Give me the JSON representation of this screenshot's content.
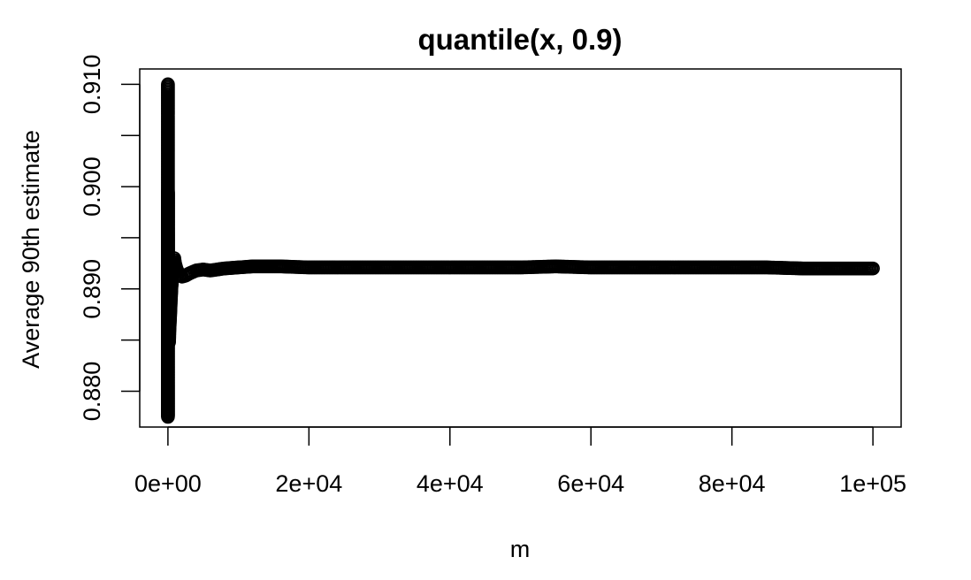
{
  "chart_data": {
    "type": "scatter",
    "title": "quantile(x, 0.9)",
    "xlabel": "m",
    "ylabel": "Average 90th estimate",
    "xlim": [
      -4000,
      104000
    ],
    "ylim": [
      0.8765,
      0.9115
    ],
    "x_ticks": [
      {
        "value": 0,
        "label": "0e+00"
      },
      {
        "value": 20000,
        "label": "2e+04"
      },
      {
        "value": 40000,
        "label": "4e+04"
      },
      {
        "value": 60000,
        "label": "6e+04"
      },
      {
        "value": 80000,
        "label": "8e+04"
      },
      {
        "value": 100000,
        "label": "1e+05"
      }
    ],
    "y_ticks": [
      {
        "value": 0.88,
        "label": "0.880"
      },
      {
        "value": 0.89,
        "label": "0.890"
      },
      {
        "value": 0.9,
        "label": "0.900"
      },
      {
        "value": 0.91,
        "label": "0.910"
      }
    ],
    "marker": "open-circle",
    "grid": false,
    "legend": "none",
    "series": [
      {
        "points": [
          [
            1,
            0.91
          ],
          [
            2,
            0.8775
          ],
          [
            3,
            0.8995
          ],
          [
            4,
            0.8968
          ],
          [
            5,
            0.8965
          ],
          [
            6,
            0.896
          ],
          [
            8,
            0.8955
          ],
          [
            10,
            0.8945
          ],
          [
            12,
            0.894
          ],
          [
            15,
            0.8935
          ],
          [
            20,
            0.8925
          ],
          [
            25,
            0.892
          ],
          [
            30,
            0.891
          ],
          [
            35,
            0.8905
          ],
          [
            40,
            0.8895
          ],
          [
            45,
            0.889
          ],
          [
            50,
            0.8885
          ],
          [
            60,
            0.888
          ],
          [
            70,
            0.8875
          ],
          [
            80,
            0.887
          ],
          [
            90,
            0.8865
          ],
          [
            100,
            0.886
          ],
          [
            120,
            0.8855
          ],
          [
            140,
            0.885
          ],
          [
            160,
            0.8848
          ],
          [
            180,
            0.8852
          ],
          [
            200,
            0.8858
          ],
          [
            250,
            0.8865
          ],
          [
            300,
            0.8872
          ],
          [
            350,
            0.888
          ],
          [
            400,
            0.8888
          ],
          [
            450,
            0.8895
          ],
          [
            500,
            0.8902
          ],
          [
            600,
            0.891
          ],
          [
            700,
            0.8918
          ],
          [
            800,
            0.8925
          ],
          [
            900,
            0.893
          ],
          [
            1000,
            0.8925
          ],
          [
            1200,
            0.892
          ],
          [
            1500,
            0.8915
          ],
          [
            2000,
            0.8912
          ],
          [
            2500,
            0.8913
          ],
          [
            3000,
            0.8915
          ],
          [
            4000,
            0.8918
          ],
          [
            5000,
            0.8919
          ],
          [
            6000,
            0.8918
          ],
          [
            7000,
            0.8919
          ],
          [
            8000,
            0.892
          ],
          [
            10000,
            0.8921
          ],
          [
            12000,
            0.8922
          ],
          [
            14000,
            0.8922
          ],
          [
            16000,
            0.8922
          ],
          [
            20000,
            0.8921
          ],
          [
            25000,
            0.8921
          ],
          [
            30000,
            0.8921
          ],
          [
            35000,
            0.8921
          ],
          [
            40000,
            0.8921
          ],
          [
            45000,
            0.8921
          ],
          [
            50000,
            0.8921
          ],
          [
            55000,
            0.8922
          ],
          [
            60000,
            0.8921
          ],
          [
            65000,
            0.8921
          ],
          [
            70000,
            0.8921
          ],
          [
            75000,
            0.8921
          ],
          [
            80000,
            0.8921
          ],
          [
            85000,
            0.8921
          ],
          [
            90000,
            0.892
          ],
          [
            95000,
            0.892
          ],
          [
            100000,
            0.892
          ]
        ]
      }
    ]
  }
}
